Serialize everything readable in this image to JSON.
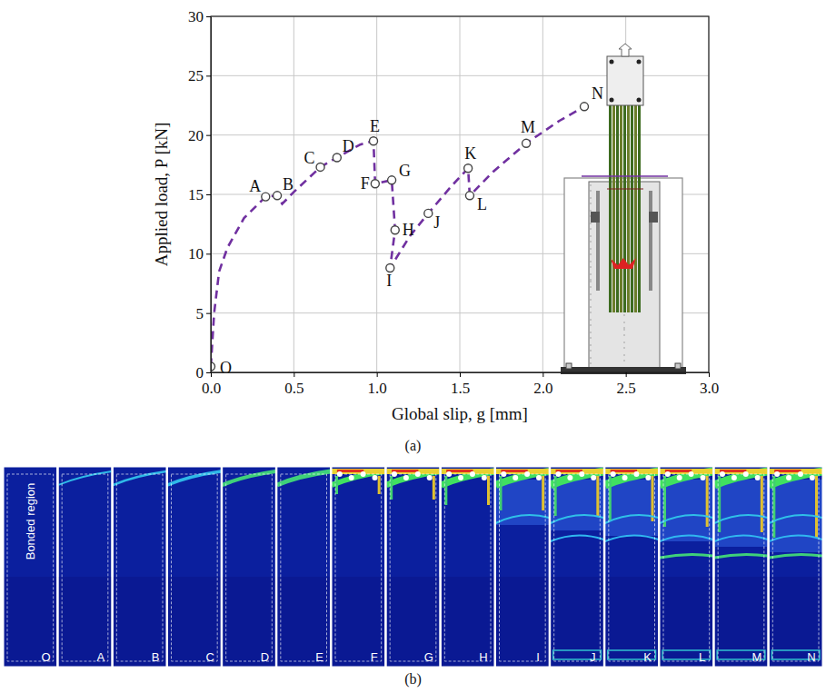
{
  "chart_data": {
    "type": "line",
    "panel_label": "(a)",
    "x_label": "Global slip, g [mm]",
    "y_label": "Applied load, P [kN]",
    "x": [
      0.0,
      0.02,
      0.05,
      0.1,
      0.2,
      0.33,
      0.4,
      0.43,
      0.5,
      0.66,
      0.76,
      0.9,
      0.98,
      0.99,
      1.09,
      1.11,
      1.08,
      1.2,
      1.31,
      1.45,
      1.55,
      1.56,
      1.7,
      1.9,
      2.1,
      2.25
    ],
    "values": [
      0.5,
      5.0,
      8.5,
      10.5,
      13.0,
      14.8,
      14.9,
      14.2,
      15.2,
      17.3,
      18.1,
      19.2,
      19.5,
      15.9,
      16.2,
      12.0,
      8.8,
      11.5,
      13.4,
      15.7,
      17.2,
      14.9,
      16.9,
      19.3,
      21.2,
      22.4
    ],
    "color": "#7030a0",
    "line_style": "dashed",
    "marker": "circle",
    "grid": true,
    "xlim": [
      0,
      3
    ],
    "xticks": [
      {
        "value": 0,
        "label": "0.0"
      },
      {
        "value": 0.5,
        "label": "0.5"
      },
      {
        "value": 1,
        "label": "1.0"
      },
      {
        "value": 1.5,
        "label": "1.5"
      },
      {
        "value": 2,
        "label": "2.0"
      },
      {
        "value": 2.5,
        "label": "2.5"
      },
      {
        "value": 3,
        "label": "3.0"
      }
    ],
    "ylim": [
      0,
      30
    ],
    "yticks": [
      0,
      5,
      10,
      15,
      20,
      25,
      30
    ],
    "annotations": [
      {
        "text": "O",
        "x": 0.0,
        "y": 0.5
      },
      {
        "text": "A",
        "x": 0.33,
        "y": 14.8
      },
      {
        "text": "B",
        "x": 0.4,
        "y": 14.9
      },
      {
        "text": "C",
        "x": 0.66,
        "y": 17.3
      },
      {
        "text": "D",
        "x": 0.76,
        "y": 18.1
      },
      {
        "text": "E",
        "x": 0.98,
        "y": 19.5
      },
      {
        "text": "F",
        "x": 0.99,
        "y": 15.9
      },
      {
        "text": "G",
        "x": 1.09,
        "y": 16.2
      },
      {
        "text": "H",
        "x": 1.11,
        "y": 12.0
      },
      {
        "text": "I",
        "x": 1.08,
        "y": 8.8
      },
      {
        "text": "J",
        "x": 1.31,
        "y": 13.4
      },
      {
        "text": "K",
        "x": 1.55,
        "y": 17.2
      },
      {
        "text": "L",
        "x": 1.56,
        "y": 14.9
      },
      {
        "text": "M",
        "x": 1.9,
        "y": 19.3
      },
      {
        "text": "N",
        "x": 2.25,
        "y": 22.4
      }
    ],
    "images": {
      "panel_label": "(b)",
      "region_label": "Bonded region",
      "labels": [
        "O",
        "A",
        "B",
        "C",
        "D",
        "E",
        "F",
        "G",
        "H",
        "I",
        "J",
        "K",
        "L",
        "M",
        "N"
      ]
    }
  }
}
